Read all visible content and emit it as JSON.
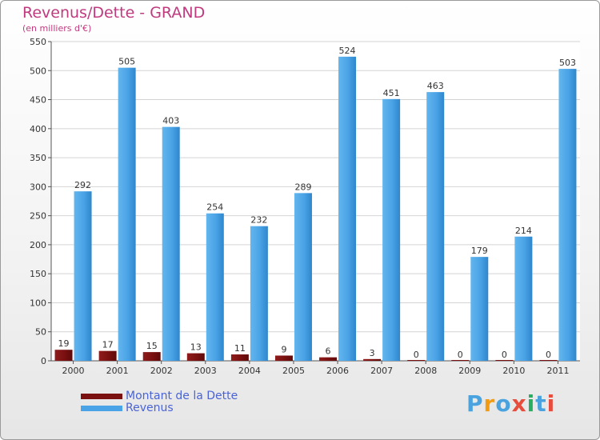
{
  "title": "Revenus/Dette - GRAND",
  "subtitle": "(en milliers d'€)",
  "logo": {
    "text": "Proxiti",
    "letters": [
      "P",
      "r",
      "o",
      "x",
      "i",
      "t",
      "i"
    ],
    "colors": [
      "#4aa3df",
      "#f39c12",
      "#4aa3df",
      "#e74c3c",
      "#27ae60",
      "#4aa3df",
      "#e74c3c"
    ]
  },
  "chart_data": {
    "type": "bar",
    "categories": [
      "2000",
      "2001",
      "2002",
      "2003",
      "2004",
      "2005",
      "2006",
      "2007",
      "2008",
      "2009",
      "2010",
      "2011"
    ],
    "series": [
      {
        "name": "Montant de la Dette",
        "color": "#7a1010",
        "values": [
          19,
          17,
          15,
          13,
          11,
          9,
          6,
          3,
          0,
          0,
          0,
          0
        ]
      },
      {
        "name": "Revenus",
        "color": "#4aa3e6",
        "values": [
          292,
          505,
          403,
          254,
          232,
          289,
          524,
          451,
          463,
          179,
          214,
          503
        ]
      }
    ],
    "yticks": [
      0,
      50,
      100,
      150,
      200,
      250,
      300,
      350,
      400,
      450,
      500,
      550
    ],
    "ylim": [
      0,
      550
    ],
    "grid": true,
    "legend_position": "bottom-left"
  }
}
